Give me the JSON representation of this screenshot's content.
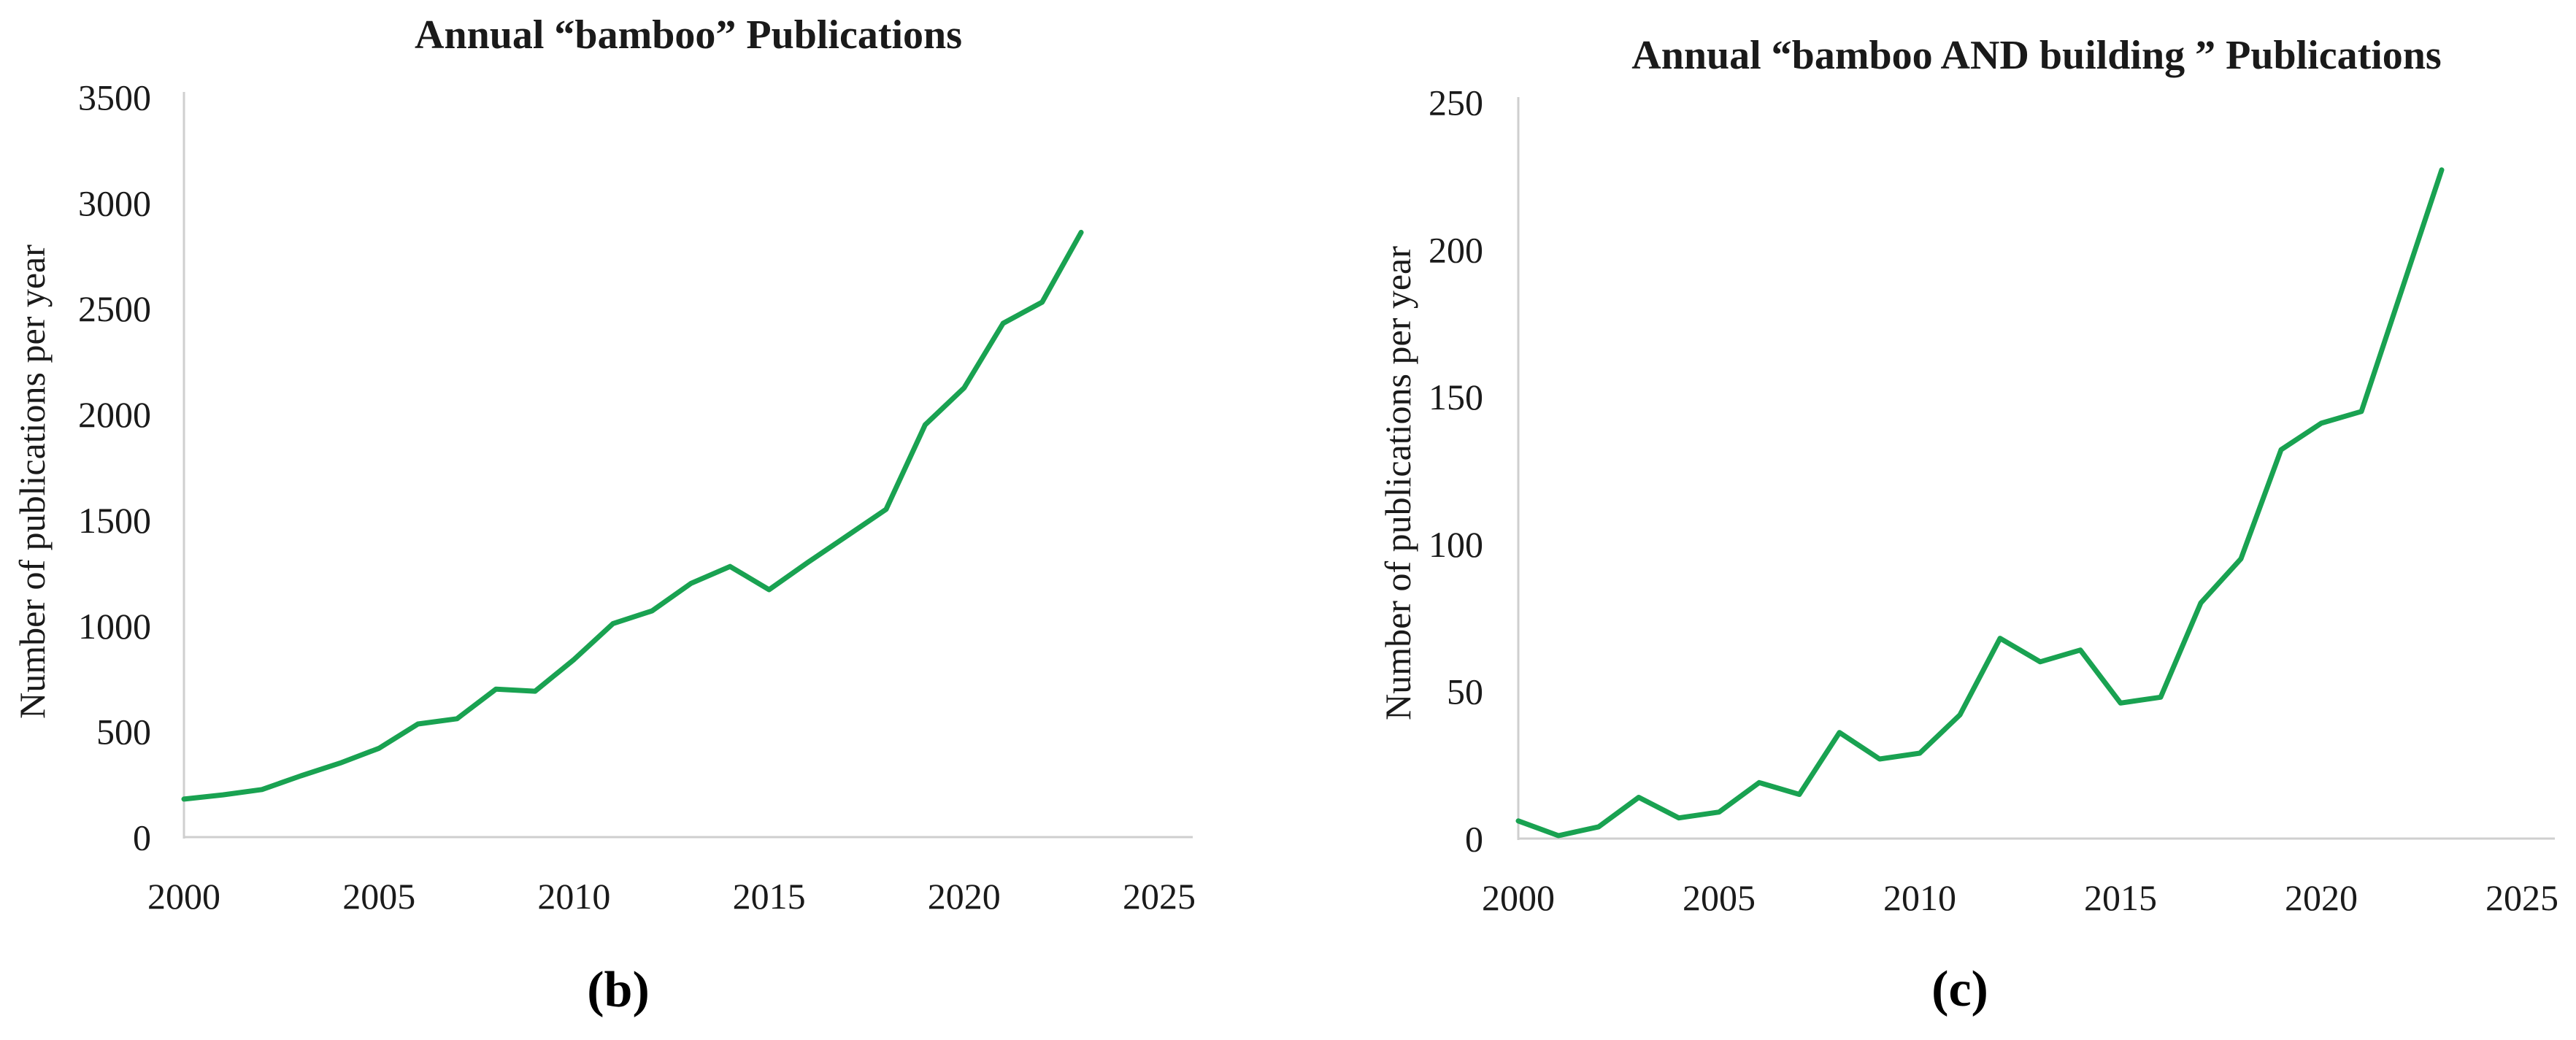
{
  "page": {
    "background": "#ffffff",
    "text_color": "#1a1a1a",
    "axis_color": "#cfcfcf",
    "accent_green": "#19a251"
  },
  "chart_data": [
    {
      "panel": "b",
      "type": "line",
      "title": "Annual “bamboo” Publications",
      "ylabel": "Number of publications per year",
      "xlabel": "",
      "caption": "(b)",
      "line_color": "#19a251",
      "grid": false,
      "legend": "none",
      "xlim": [
        2000,
        2025
      ],
      "ylim": [
        0,
        3500
      ],
      "x_ticks": [
        2000,
        2005,
        2010,
        2015,
        2020,
        2025
      ],
      "y_ticks": [
        0,
        500,
        1000,
        1500,
        2000,
        2500,
        3000,
        3500
      ],
      "x": [
        2000,
        2001,
        2002,
        2003,
        2004,
        2005,
        2006,
        2007,
        2008,
        2009,
        2010,
        2011,
        2012,
        2013,
        2014,
        2015,
        2016,
        2017,
        2018,
        2019,
        2020,
        2021,
        2022,
        2023
      ],
      "y": [
        180,
        200,
        225,
        290,
        350,
        420,
        535,
        560,
        700,
        690,
        840,
        1010,
        1070,
        1200,
        1280,
        1170,
        1300,
        1425,
        1550,
        1950,
        2125,
        2430,
        2530,
        2860
      ]
    },
    {
      "panel": "c",
      "type": "line",
      "title": "Annual “bamboo AND building ” Publications",
      "ylabel": "Number of publications per year",
      "xlabel": "",
      "caption": "(c)",
      "line_color": "#19a251",
      "grid": false,
      "legend": "none",
      "xlim": [
        2000,
        2025
      ],
      "ylim": [
        0,
        250
      ],
      "x_ticks": [
        2000,
        2005,
        2010,
        2015,
        2020,
        2025
      ],
      "y_ticks": [
        0,
        50,
        100,
        150,
        200,
        250
      ],
      "x": [
        2000,
        2001,
        2002,
        2003,
        2004,
        2005,
        2006,
        2007,
        2008,
        2009,
        2010,
        2011,
        2012,
        2013,
        2014,
        2015,
        2016,
        2017,
        2018,
        2019,
        2020,
        2021,
        2022,
        2023
      ],
      "y": [
        6,
        1,
        4,
        14,
        7,
        9,
        19,
        15,
        36,
        27,
        29,
        42,
        68,
        60,
        64,
        46,
        48,
        80,
        95,
        132,
        141,
        145,
        186,
        227
      ]
    }
  ]
}
